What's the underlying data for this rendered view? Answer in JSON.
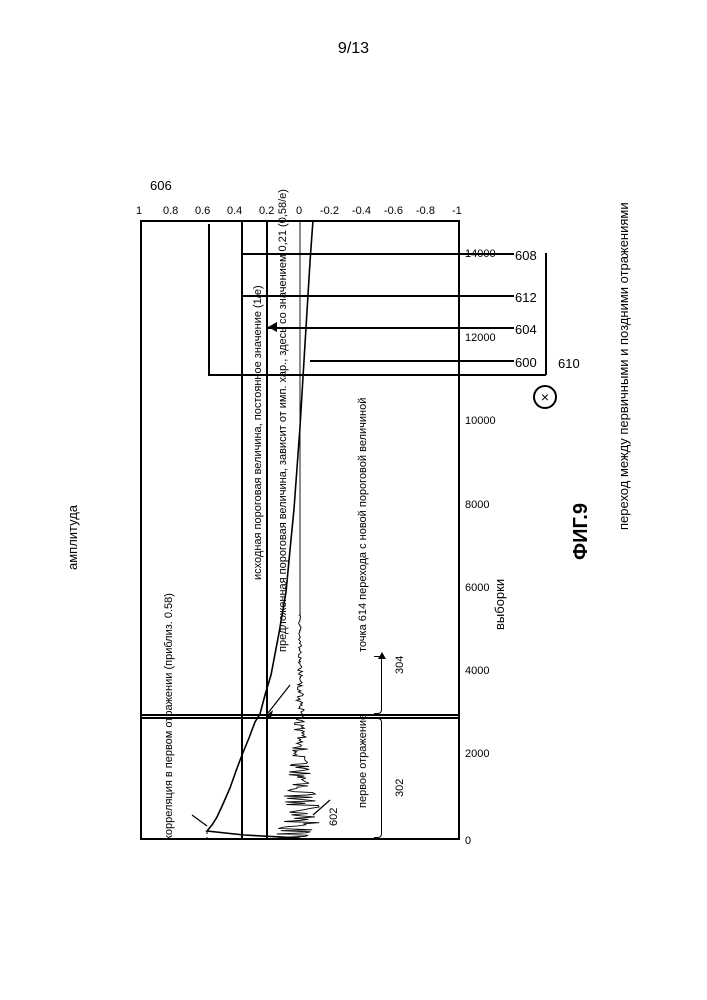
{
  "page_number": "9/13",
  "figure_caption": "ФИГ.9",
  "chart": {
    "type": "line",
    "title": "переход между первичными и поздними отражениями",
    "x_axis_label": "выборки",
    "y_axis_label": "амплитуда",
    "xlim": [
      0,
      15000
    ],
    "ylim": [
      -1,
      1
    ],
    "x_ticks": [
      0,
      2000,
      4000,
      6000,
      8000,
      10000,
      12000,
      14000
    ],
    "y_ticks": [
      -1,
      -0.8,
      -0.6,
      -0.4,
      -0.2,
      0,
      0.2,
      0.4,
      0.6,
      0.8,
      1
    ],
    "background_color": "#ffffff",
    "border_color": "#000000",
    "line_color": "#000000",
    "line_width": 1.2,
    "thresholds": {
      "original": {
        "value": 0.368,
        "label": "исходная пороговая величина, постоянное значение (1/e)"
      },
      "proposed": {
        "value": 0.21,
        "label": "предложенная пороговая величина, зависит от имп. хар., здесь со значением 0,21 (0,58/e)"
      }
    },
    "transition_sample": 3050,
    "first_reflection_correlation": 0.58,
    "series": {
      "correlation": {
        "id": "600",
        "description": "correlation envelope curve",
        "points": [
          [
            50,
            0.0
          ],
          [
            80,
            0.35
          ],
          [
            150,
            0.58
          ],
          [
            300,
            0.55
          ],
          [
            500,
            0.52
          ],
          [
            800,
            0.48
          ],
          [
            1200,
            0.44
          ],
          [
            1600,
            0.4
          ],
          [
            2000,
            0.36
          ],
          [
            2400,
            0.32
          ],
          [
            2800,
            0.28
          ],
          [
            3050,
            0.25
          ],
          [
            3500,
            0.22
          ],
          [
            4000,
            0.18
          ],
          [
            5000,
            0.13
          ],
          [
            6000,
            0.09
          ],
          [
            7000,
            0.06
          ],
          [
            8000,
            0.04
          ],
          [
            9000,
            0.02
          ],
          [
            10000,
            0.0
          ],
          [
            12000,
            -0.03
          ],
          [
            14000,
            -0.06
          ],
          [
            15000,
            -0.08
          ]
        ]
      },
      "impulse": {
        "id": "602",
        "description": "first reflection impulse response",
        "center": 0.0,
        "max_amp": 0.2,
        "decay_end": 5500
      }
    }
  },
  "callouts": {
    "606": "606",
    "608": "608",
    "610": "610",
    "612": "612",
    "604": "604",
    "600": "600",
    "602": "602",
    "614": "точка 614 перехода с новой пороговой величиной",
    "302": "302",
    "304": "304"
  },
  "annotations": {
    "corr_first_refl": "корреляция в первом отражении (приблиз. 0.58)",
    "first_reflection": "первое отражение"
  },
  "colors": {
    "text": "#000000",
    "line": "#000000",
    "bg": "#ffffff"
  },
  "fontsize": {
    "ticks": 11,
    "labels": 13,
    "caption": 20
  }
}
